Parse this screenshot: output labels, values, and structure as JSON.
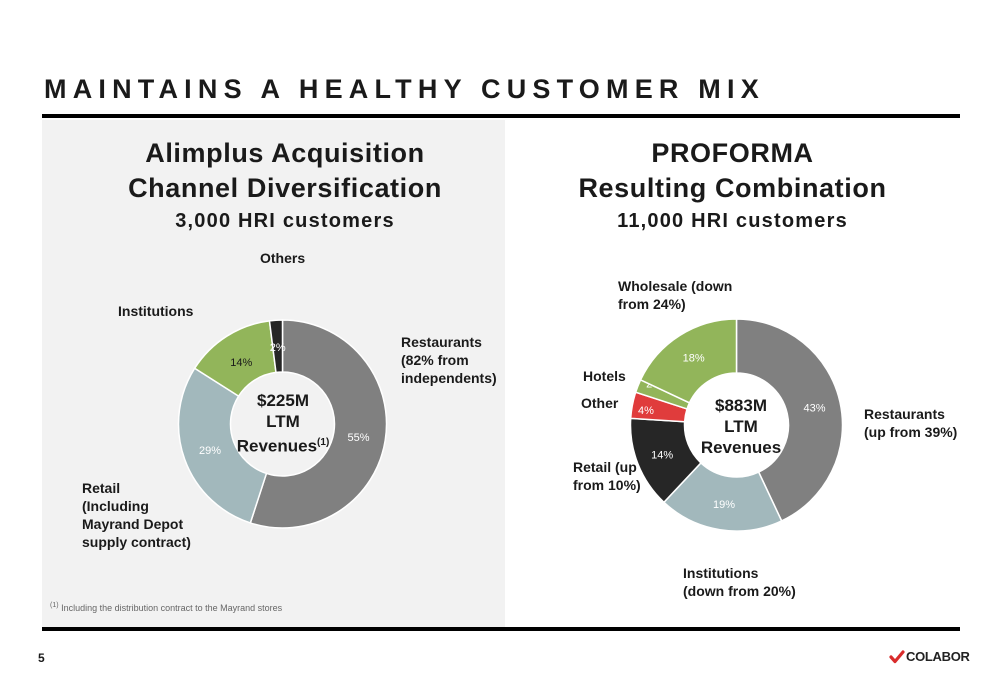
{
  "title": "MAINTAINS A HEALTHY CUSTOMER MIX",
  "left": {
    "heading": [
      "Alimplus Acquisition",
      "Channel Diversification",
      "3,000 HRI customers"
    ],
    "center": [
      "$225M",
      "LTM",
      "Revenues",
      "(1)"
    ],
    "labels": {
      "others": [
        "Others"
      ],
      "institutions": [
        "Institutions"
      ],
      "restaurants": [
        "Restaurants",
        "(82% from",
        "independents)"
      ],
      "retail": [
        "Retail",
        "(Including",
        "Mayrand Depot",
        "supply contract)"
      ]
    }
  },
  "right": {
    "heading": [
      "PROFORMA",
      "Resulting Combination",
      "11,000 HRI customers"
    ],
    "center": [
      "$883M",
      "LTM",
      "Revenues"
    ],
    "labels": {
      "wholesale": [
        "Wholesale (down",
        "from 24%)"
      ],
      "hotels": [
        "Hotels"
      ],
      "other": [
        "Other"
      ],
      "retail": [
        "Retail (up",
        "from 10%)"
      ],
      "restaurants": [
        "Restaurants",
        "(up from 39%)"
      ],
      "institutions": [
        "Institutions",
        "(down from 20%)"
      ]
    }
  },
  "chart_data": [
    {
      "type": "pie",
      "donut": true,
      "title": "Alimplus Acquisition Channel Diversification",
      "subtitle": "3,000 HRI customers",
      "categories": [
        "Restaurants",
        "Retail",
        "Institutions",
        "Others"
      ],
      "values": [
        55,
        29,
        14,
        2
      ],
      "data_labels": [
        "55%",
        "29%",
        "14%",
        "2%"
      ],
      "colors": [
        "#808080",
        "#a2b8bc",
        "#92b55a",
        "#262626"
      ],
      "label_colors": [
        "#ffffff",
        "#ffffff",
        "#1a1a1a",
        "#ffffff"
      ],
      "center_text": "$225M LTM Revenues(1)"
    },
    {
      "type": "pie",
      "donut": true,
      "title": "PROFORMA Resulting Combination",
      "subtitle": "11,000 HRI customers",
      "categories": [
        "Restaurants",
        "Institutions",
        "Retail",
        "Other",
        "Hotels",
        "Wholesale"
      ],
      "values": [
        43,
        19,
        14,
        4,
        2,
        18
      ],
      "data_labels": [
        "43%",
        "19%",
        "14%",
        "4%",
        "2%",
        "18%"
      ],
      "colors": [
        "#808080",
        "#a2b8bc",
        "#262626",
        "#e03c3c",
        "#92b55a",
        "#92b55a"
      ],
      "label_colors": [
        "#ffffff",
        "#ffffff",
        "#ffffff",
        "#ffffff",
        "#ffffff",
        "#ffffff"
      ],
      "center_text": "$883M LTM Revenues"
    }
  ],
  "footnote": [
    "(1)",
    " Including the distribution contract to the Mayrand stores"
  ],
  "page_number": "5",
  "logo": {
    "text": "COLABOR",
    "icon": "colabor-checkmark-icon",
    "color": "#d92c2c"
  }
}
